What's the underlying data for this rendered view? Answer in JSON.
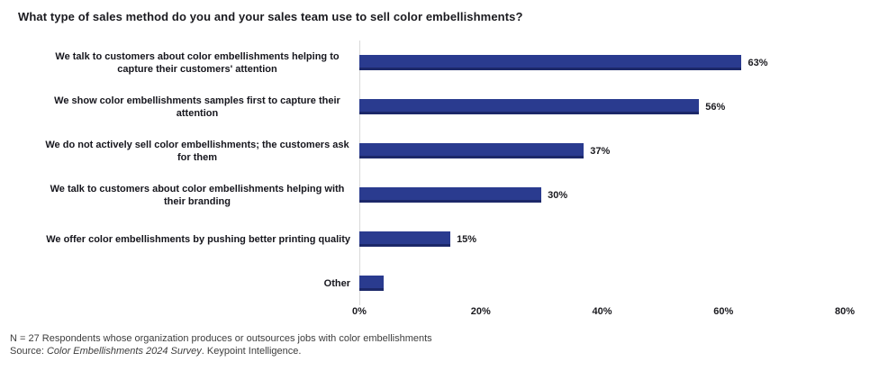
{
  "title": "What type of sales method do you and your sales team use to sell color embellishments?",
  "chart_data": {
    "type": "bar",
    "orientation": "horizontal",
    "title": "What type of sales method do you and your sales team use to sell color embellishments?",
    "categories": [
      "We talk to customers about color embellishments helping to capture their customers' attention",
      "We show color embellishments samples first to capture their attention",
      "We do not actively sell color embellishments; the customers ask for them",
      "We talk to customers about color embellishments helping with their branding",
      "We offer color embellishments by pushing better printing quality",
      "Other"
    ],
    "values": [
      63,
      56,
      37,
      30,
      15,
      4
    ],
    "value_labels": [
      "63%",
      "56%",
      "37%",
      "30%",
      "15%",
      ""
    ],
    "xlabel": "",
    "ylabel": "",
    "xlim": [
      0,
      80
    ],
    "x_ticks": [
      "0%",
      "20%",
      "40%",
      "60%",
      "80%"
    ],
    "grid": false,
    "legend": false,
    "bar_color": "#2a3b8f",
    "axis_line_color": "#d9d9d9"
  },
  "footer": {
    "note": "N = 27 Respondents whose organization produces or outsources jobs with color embellishments",
    "source_prefix": "Source: ",
    "source_italic": "Color Embellishments 2024 Survey",
    "source_suffix": ". Keypoint Intelligence."
  }
}
